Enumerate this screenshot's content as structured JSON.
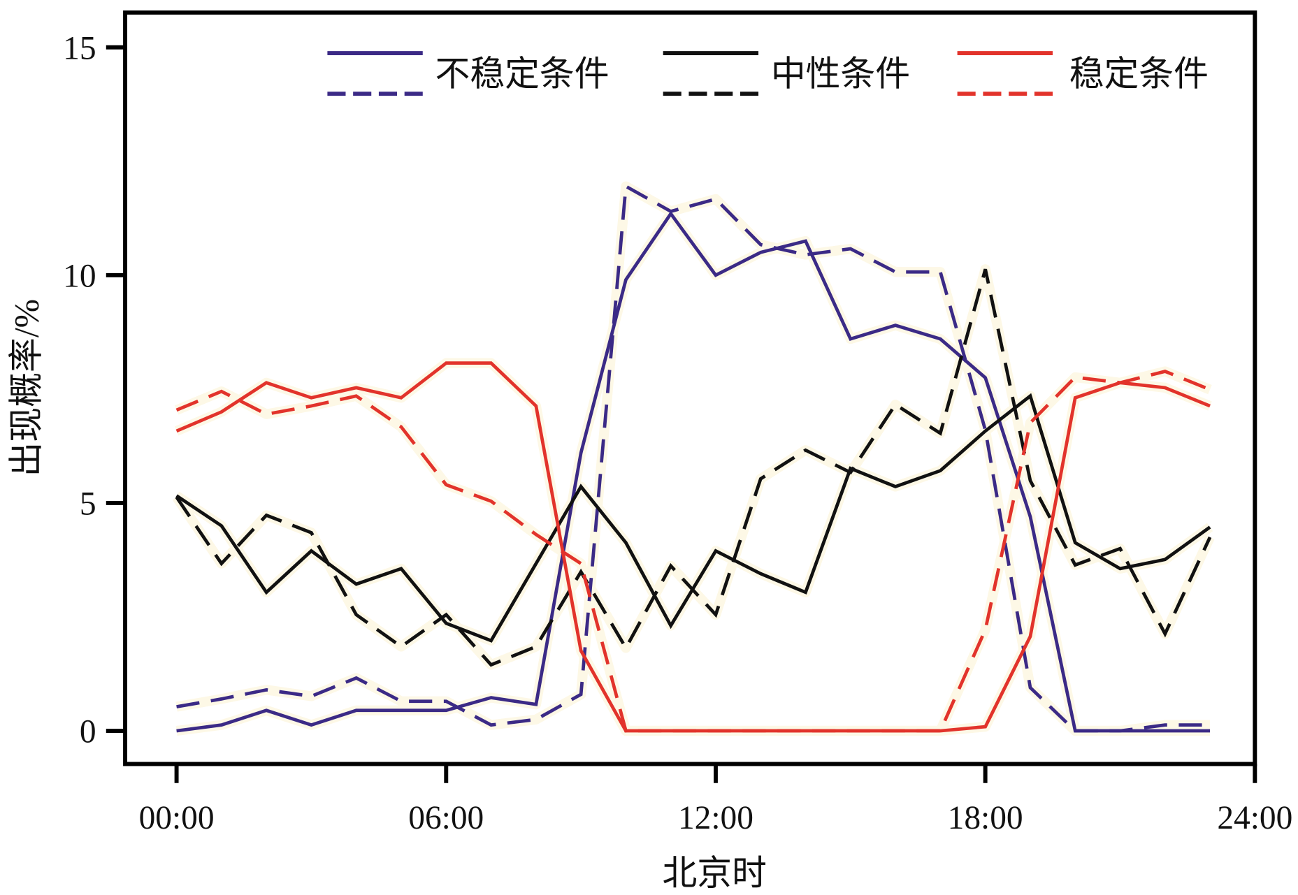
{
  "chart_data": {
    "type": "line",
    "xlabel": "北京时",
    "ylabel": "出现概率/%",
    "xlim": [
      0,
      24
    ],
    "ylim": [
      -0.8,
      15.5
    ],
    "x_ticks": [
      0,
      6,
      12,
      18,
      24
    ],
    "x_tick_labels": [
      "00:00",
      "06:00",
      "12:00",
      "18:00",
      "24:00"
    ],
    "y_ticks": [
      0,
      5,
      10,
      15
    ],
    "y_tick_labels": [
      "0",
      "5",
      "10",
      "15"
    ],
    "grid": false,
    "legend_position": "top",
    "x": [
      0,
      1,
      2,
      3,
      4,
      5,
      6,
      7,
      8,
      9,
      10,
      11,
      12,
      13,
      14,
      15,
      16,
      17,
      18,
      19,
      20,
      21,
      22,
      23
    ],
    "legend_groups": [
      {
        "label": "不稳定条件",
        "color": "#3b2a86"
      },
      {
        "label": "中性条件",
        "color": "#111111"
      },
      {
        "label": "稳定条件",
        "color": "#e2332b"
      }
    ],
    "series": [
      {
        "name": "不稳定条件-实线",
        "group": 0,
        "dashed": false,
        "color": "#3b2a86",
        "values": [
          0,
          0.13,
          0.45,
          0.13,
          0.45,
          0.45,
          0.45,
          0.73,
          0.58,
          6.1,
          9.9,
          11.35,
          10.0,
          10.5,
          10.75,
          8.6,
          8.9,
          8.6,
          7.75,
          4.7,
          0,
          0,
          0,
          0
        ]
      },
      {
        "name": "不稳定条件-虚线",
        "group": 0,
        "dashed": true,
        "color": "#3b2a86",
        "values": [
          0.53,
          0.7,
          0.9,
          0.76,
          1.16,
          0.65,
          0.65,
          0.13,
          0.25,
          0.8,
          11.95,
          11.4,
          11.67,
          10.67,
          10.45,
          10.58,
          10.07,
          10.07,
          6.6,
          0.95,
          0,
          0,
          0.13,
          0.13
        ]
      },
      {
        "name": "中性条件-实线",
        "group": 1,
        "dashed": false,
        "color": "#111111",
        "values": [
          5.16,
          4.5,
          3.04,
          3.95,
          3.22,
          3.56,
          2.36,
          1.98,
          3.67,
          5.36,
          4.13,
          2.31,
          3.95,
          3.45,
          3.04,
          5.76,
          5.36,
          5.71,
          6.58,
          7.35,
          4.13,
          3.56,
          3.76,
          4.47
        ]
      },
      {
        "name": "中性条件-虚线",
        "group": 1,
        "dashed": true,
        "color": "#111111",
        "values": [
          5.13,
          3.67,
          4.73,
          4.35,
          2.55,
          1.85,
          2.55,
          1.45,
          1.85,
          3.49,
          1.82,
          3.62,
          2.55,
          5.53,
          6.16,
          5.67,
          7.16,
          6.53,
          10.13,
          5.49,
          3.64,
          4.0,
          2.13,
          4.25
        ]
      },
      {
        "name": "稳定条件-实线",
        "group": 2,
        "dashed": false,
        "color": "#e2332b",
        "values": [
          6.58,
          7.0,
          7.64,
          7.31,
          7.53,
          7.31,
          8.07,
          8.07,
          7.13,
          1.76,
          0,
          0,
          0,
          0,
          0,
          0,
          0,
          0,
          0.09,
          2.07,
          7.31,
          7.64,
          7.53,
          7.13
        ]
      },
      {
        "name": "稳定条件-虚线",
        "group": 2,
        "dashed": true,
        "color": "#e2332b",
        "values": [
          7.04,
          7.45,
          6.95,
          7.13,
          7.35,
          6.67,
          5.4,
          5.04,
          4.31,
          3.67,
          0,
          0,
          0,
          0,
          0,
          0,
          0,
          0,
          2.22,
          6.76,
          7.76,
          7.64,
          7.89,
          7.49
        ]
      }
    ]
  }
}
